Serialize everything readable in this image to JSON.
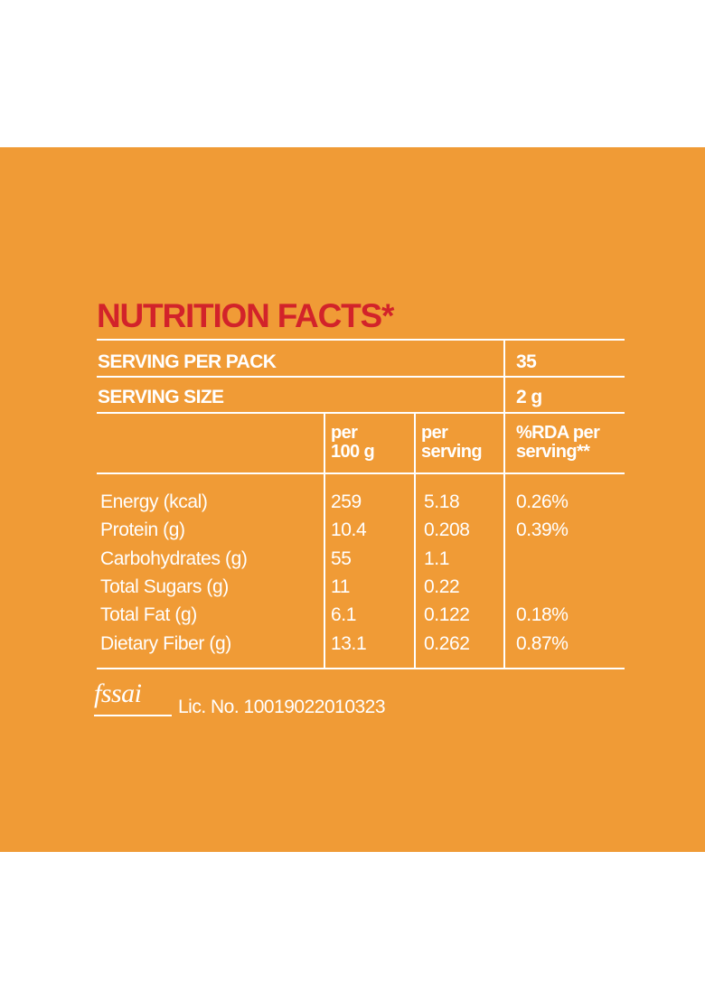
{
  "title": "NUTRITION FACTS*",
  "serving_per_pack": {
    "label": "SERVING PER PACK",
    "value": "35"
  },
  "serving_size": {
    "label": "SERVING SIZE",
    "value": "2 g"
  },
  "columns": {
    "per_100g": [
      "per",
      "100 g"
    ],
    "per_serving": [
      "per",
      "serving"
    ],
    "rda": [
      "%RDA per",
      "serving**"
    ]
  },
  "rows": [
    {
      "name": "Energy (kcal)",
      "per_100g": "259",
      "per_serving": "5.18",
      "rda": "0.26%"
    },
    {
      "name": "Protein (g)",
      "per_100g": "10.4",
      "per_serving": "0.208",
      "rda": "0.39%"
    },
    {
      "name": "Carbohydrates (g)",
      "per_100g": "55",
      "per_serving": "1.1",
      "rda": ""
    },
    {
      "name": "Total Sugars (g)",
      "per_100g": "11",
      "per_serving": "0.22",
      "rda": ""
    },
    {
      "name": "Total Fat (g)",
      "per_100g": "6.1",
      "per_serving": "0.122",
      "rda": "0.18%"
    },
    {
      "name": "Dietary Fiber (g)",
      "per_100g": "13.1",
      "per_serving": "0.262",
      "rda": "0.87%"
    }
  ],
  "fssai": {
    "logo_text": "fssai",
    "license": "Lic. No. 10019022010323"
  },
  "colors": {
    "background": "#f09b36",
    "title": "#d2232a",
    "text": "#ffffff"
  }
}
